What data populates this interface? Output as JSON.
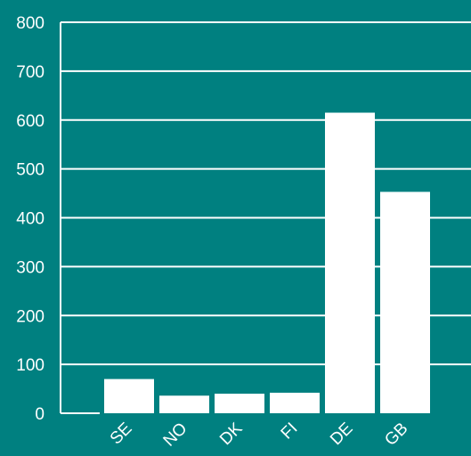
{
  "colors": {
    "background": "#008080",
    "bars": "#ffffff",
    "gridlines": "#ffffff",
    "axis_text": "#ffffff"
  },
  "chart_data": {
    "type": "bar",
    "categories": [
      "SE",
      "NO",
      "DK",
      "FI",
      "DE",
      "GB"
    ],
    "values": [
      70,
      36,
      40,
      42,
      615,
      453
    ],
    "title": "",
    "xlabel": "",
    "ylabel": "",
    "ylim": [
      0,
      800
    ],
    "yticks": [
      0,
      100,
      200,
      300,
      400,
      500,
      600,
      700,
      800
    ],
    "grid": true,
    "legend": "none",
    "x_tick_label_rotation": "diagonal"
  }
}
